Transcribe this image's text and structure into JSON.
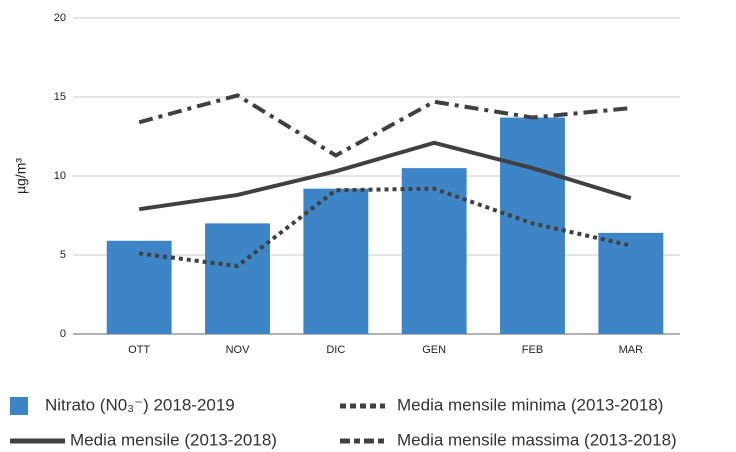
{
  "chart_data": {
    "type": "bar",
    "ylabel": "µg/m³",
    "categories": [
      "OTT",
      "NOV",
      "DIC",
      "GEN",
      "FEB",
      "MAR"
    ],
    "ylim": [
      0,
      20
    ],
    "yticks": [
      0,
      5,
      10,
      15,
      20
    ],
    "grid": true,
    "series": [
      {
        "name": "Nitrato (N0₃⁻) 2018-2019",
        "color": "#3d85c6",
        "style": "bar",
        "values": [
          5.9,
          7.0,
          9.2,
          10.5,
          13.7,
          6.4
        ]
      },
      {
        "name": "Media mensile minima (2013-2018)",
        "color": "#404040",
        "style": "dotted",
        "values": [
          5.1,
          4.3,
          9.1,
          9.2,
          7.0,
          5.6
        ]
      },
      {
        "name": "Media mensile (2013-2018)",
        "color": "#404040",
        "style": "solid",
        "values": [
          7.9,
          8.8,
          10.3,
          12.1,
          10.5,
          8.6
        ]
      },
      {
        "name": "Media mensile massima (2013-2018)",
        "color": "#404040",
        "style": "dashdot",
        "values": [
          13.4,
          15.1,
          11.3,
          14.7,
          13.7,
          14.3
        ]
      }
    ]
  }
}
